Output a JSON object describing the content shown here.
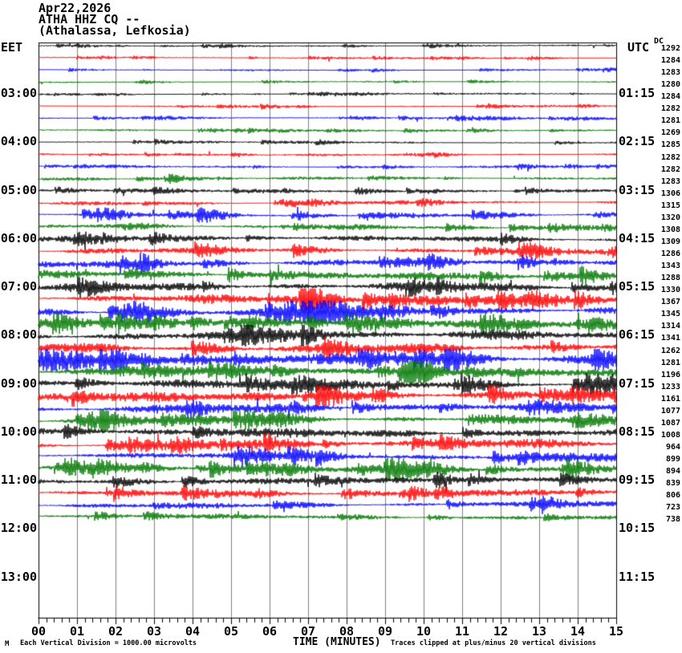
{
  "header": {
    "date": "Apr22,2026",
    "station": "ATHA HHZ CQ --",
    "location": "(Athalassa, Lefkosia)"
  },
  "axes": {
    "left_label": "EET",
    "right_label": "UTC",
    "dc_label": "DC",
    "xlabel": "TIME (MINUTES)",
    "x_ticks": [
      "00",
      "01",
      "02",
      "03",
      "04",
      "05",
      "06",
      "07",
      "08",
      "09",
      "10",
      "11",
      "12",
      "13",
      "14",
      "15"
    ]
  },
  "footer": {
    "watermark": "M",
    "scale_note": "Each Vertical Division = 1000.00 microvolts",
    "clip_note": "Traces clipped at plus/minus 20 vertical divisions"
  },
  "hour_marks": [
    {
      "eet": "03:00",
      "utc": "01:15"
    },
    {
      "eet": "04:00",
      "utc": "02:15"
    },
    {
      "eet": "05:00",
      "utc": "03:15"
    },
    {
      "eet": "06:00",
      "utc": "04:15"
    },
    {
      "eet": "07:00",
      "utc": "05:15"
    },
    {
      "eet": "08:00",
      "utc": "06:15"
    },
    {
      "eet": "09:00",
      "utc": "07:15"
    },
    {
      "eet": "10:00",
      "utc": "08:15"
    },
    {
      "eet": "11:00",
      "utc": "09:15"
    },
    {
      "eet": "12:00",
      "utc": "10:15"
    },
    {
      "eet": "13:00",
      "utc": "11:15"
    }
  ],
  "colors": {
    "black": "#000000",
    "red": "#ff0000",
    "blue": "#0000ff",
    "green": "#007700",
    "grid": "#7f7f7f"
  },
  "chart_data": {
    "type": "line",
    "subtype": "helicorder-seismogram",
    "title": "ATHA HHZ CQ -- (Athalassa, Lefkosia) Apr22,2026",
    "xlabel": "TIME (MINUTES)",
    "x_range_minutes": [
      0,
      15
    ],
    "minutes_per_row": 15,
    "grid": true,
    "scale_note": "Each Vertical Division = 1000.00 microvolts",
    "clip_note": "Traces clipped at plus/minus 20 vertical divisions",
    "rows": [
      {
        "eet_start": "02:00",
        "color": "black",
        "dc": 1292,
        "amp": 1.2
      },
      {
        "eet_start": "02:15",
        "color": "red",
        "dc": 1284,
        "amp": 1.3
      },
      {
        "eet_start": "02:30",
        "color": "blue",
        "dc": 1283,
        "amp": 1.3
      },
      {
        "eet_start": "02:45",
        "color": "green",
        "dc": 1280,
        "amp": 1.2
      },
      {
        "eet_start": "03:00",
        "color": "black",
        "dc": 1284,
        "amp": 1.3
      },
      {
        "eet_start": "03:15",
        "color": "red",
        "dc": 1282,
        "amp": 1.4
      },
      {
        "eet_start": "03:30",
        "color": "blue",
        "dc": 1281,
        "amp": 1.5
      },
      {
        "eet_start": "03:45",
        "color": "green",
        "dc": 1269,
        "amp": 1.5
      },
      {
        "eet_start": "04:00",
        "color": "black",
        "dc": 1285,
        "amp": 1.6
      },
      {
        "eet_start": "04:15",
        "color": "red",
        "dc": 1282,
        "amp": 1.7
      },
      {
        "eet_start": "04:30",
        "color": "blue",
        "dc": 1282,
        "amp": 1.9
      },
      {
        "eet_start": "04:45",
        "color": "green",
        "dc": 1283,
        "amp": 2.1
      },
      {
        "eet_start": "05:00",
        "color": "black",
        "dc": 1306,
        "amp": 2.3
      },
      {
        "eet_start": "05:15",
        "color": "red",
        "dc": 1315,
        "amp": 2.6
      },
      {
        "eet_start": "05:30",
        "color": "blue",
        "dc": 1320,
        "amp": 3.0
      },
      {
        "eet_start": "05:45",
        "color": "green",
        "dc": 1308,
        "amp": 3.4
      },
      {
        "eet_start": "06:00",
        "color": "black",
        "dc": 1309,
        "amp": 3.9
      },
      {
        "eet_start": "06:15",
        "color": "red",
        "dc": 1286,
        "amp": 4.3
      },
      {
        "eet_start": "06:30",
        "color": "blue",
        "dc": 1343,
        "amp": 4.9
      },
      {
        "eet_start": "06:45",
        "color": "green",
        "dc": 1288,
        "amp": 5.3
      },
      {
        "eet_start": "07:00",
        "color": "black",
        "dc": 1330,
        "amp": 5.8
      },
      {
        "eet_start": "07:15",
        "color": "red",
        "dc": 1367,
        "amp": 6.2
      },
      {
        "eet_start": "07:30",
        "color": "blue",
        "dc": 1345,
        "amp": 6.5
      },
      {
        "eet_start": "07:45",
        "color": "green",
        "dc": 1314,
        "amp": 6.8
      },
      {
        "eet_start": "08:00",
        "color": "black",
        "dc": 1341,
        "amp": 7.0
      },
      {
        "eet_start": "08:15",
        "color": "red",
        "dc": 1262,
        "amp": 6.9
      },
      {
        "eet_start": "08:30",
        "color": "blue",
        "dc": 1281,
        "amp": 6.8
      },
      {
        "eet_start": "08:45",
        "color": "green",
        "dc": 1196,
        "amp": 6.6
      },
      {
        "eet_start": "09:00",
        "color": "black",
        "dc": 1233,
        "amp": 6.6
      },
      {
        "eet_start": "09:15",
        "color": "red",
        "dc": 1161,
        "amp": 6.3
      },
      {
        "eet_start": "09:30",
        "color": "blue",
        "dc": 1077,
        "amp": 6.1
      },
      {
        "eet_start": "09:45",
        "color": "green",
        "dc": 1087,
        "amp": 6.0
      },
      {
        "eet_start": "10:00",
        "color": "black",
        "dc": 1008,
        "amp": 6.2
      },
      {
        "eet_start": "10:15",
        "color": "red",
        "dc": 964,
        "amp": 5.8
      },
      {
        "eet_start": "10:30",
        "color": "blue",
        "dc": 899,
        "amp": 5.5
      },
      {
        "eet_start": "10:45",
        "color": "green",
        "dc": 894,
        "amp": 5.2
      },
      {
        "eet_start": "11:00",
        "color": "black",
        "dc": 839,
        "amp": 4.4
      },
      {
        "eet_start": "11:15",
        "color": "red",
        "dc": 806,
        "amp": 4.0
      },
      {
        "eet_start": "11:30",
        "color": "blue",
        "dc": 723,
        "amp": 3.6
      },
      {
        "eet_start": "11:45",
        "color": "green",
        "dc": 738,
        "amp": 3.2
      }
    ]
  }
}
